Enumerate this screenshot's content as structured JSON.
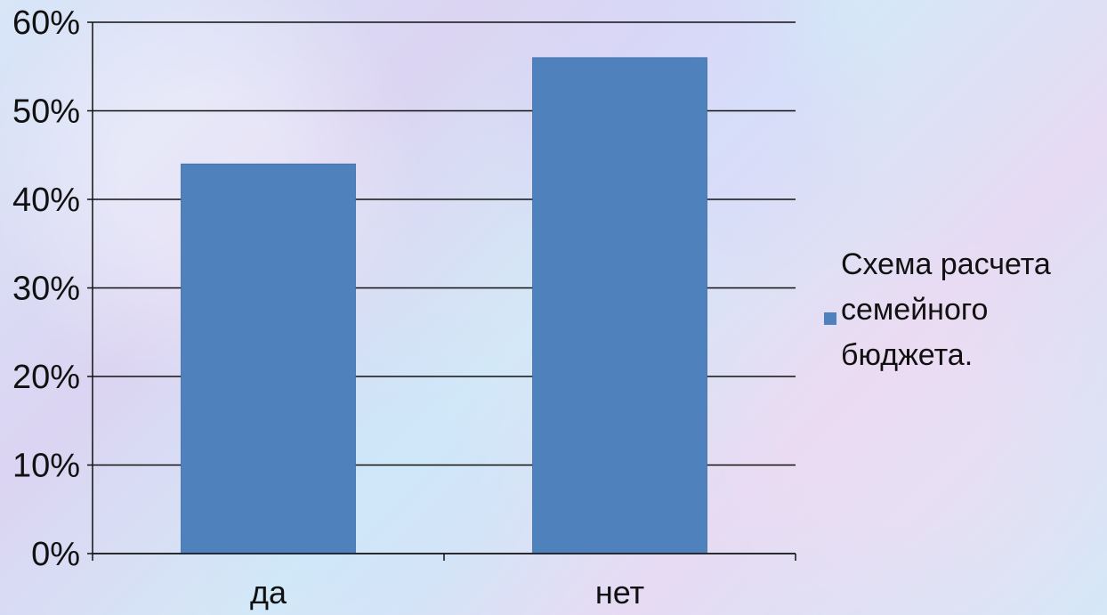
{
  "chart_data": {
    "type": "bar",
    "categories": [
      "да",
      "нет"
    ],
    "series": [
      {
        "name": "Схема расчета семейного бюджета.",
        "values": [
          44,
          56
        ]
      }
    ],
    "legend": {
      "position": "right",
      "lines": [
        "Схема расчета",
        "семейного",
        "бюджета."
      ]
    },
    "y_ticks": [
      "0%",
      "10%",
      "20%",
      "30%",
      "40%",
      "50%",
      "60%"
    ],
    "ylim": [
      0,
      60
    ],
    "grid": true,
    "colors": {
      "bar": "#4f81bd",
      "grid": "#111111",
      "text": "#111111"
    }
  }
}
